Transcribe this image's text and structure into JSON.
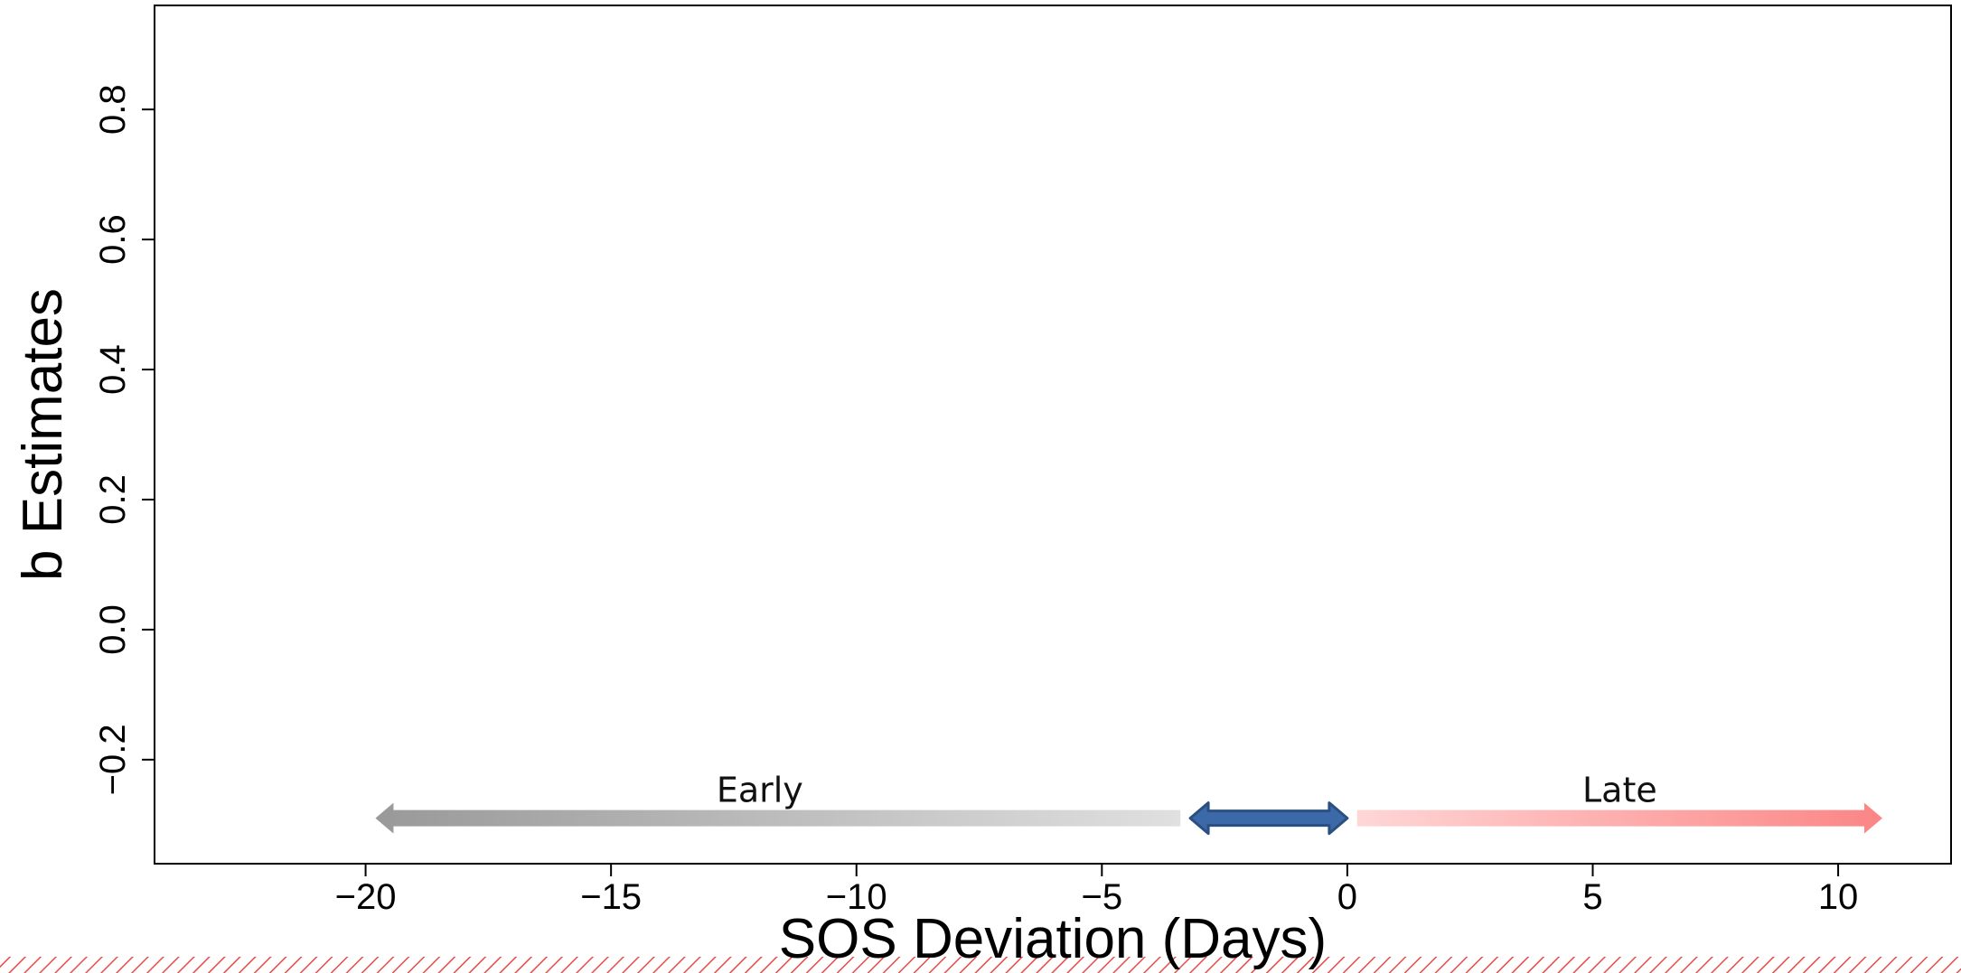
{
  "chart_data": {
    "type": "scatter",
    "title": "",
    "xlabel": "SOS Deviation (Days)",
    "ylabel": "b Estimates",
    "xlim": [
      -24.3,
      12.3
    ],
    "ylim": [
      -0.36,
      0.96
    ],
    "x_ticks": [
      -20,
      -15,
      -10,
      -5,
      0,
      5,
      10
    ],
    "x_tick_labels": [
      "−20",
      "−15",
      "−10",
      "−5",
      "0",
      "5",
      "10"
    ],
    "y_ticks": [
      -0.2,
      0.0,
      0.2,
      0.4,
      0.6,
      0.8
    ],
    "y_tick_labels": [
      "−0.2",
      "0.0",
      "0.2",
      "0.4",
      "0.6",
      "0.8"
    ],
    "grid": false,
    "series": [],
    "annotations": {
      "early_arrow": {
        "label": "Early",
        "x_from": -3.4,
        "x_to": -19.8,
        "y": -0.29,
        "color_start": "#e0e0e0",
        "color_end": "#999999"
      },
      "normal_arrow": {
        "x_from": -3.2,
        "x_to": 0.0,
        "y": -0.29,
        "color_fill": "#3c6aa8",
        "color_edge": "#2a4f80"
      },
      "late_arrow": {
        "label": "Late",
        "x_from": 0.2,
        "x_to": 10.9,
        "y": -0.29,
        "color_start": "#ffd6d6",
        "color_end": "#fb8585"
      }
    }
  }
}
